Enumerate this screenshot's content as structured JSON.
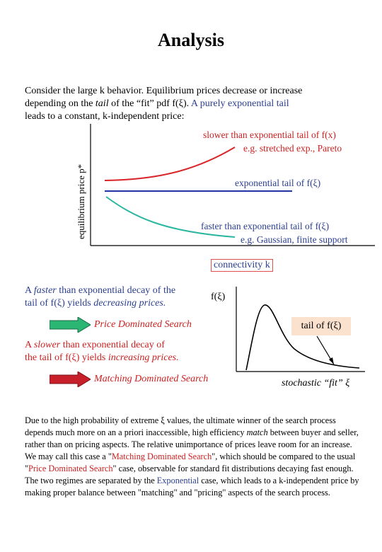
{
  "title": "Analysis",
  "intro": {
    "line1": "Consider the large k behavior. Equilibrium prices decrease or increase",
    "line2_pre": "depending on the ",
    "line2_tail": "tail",
    "line2_post": " of the “fit” pdf  f(ξ). ",
    "line2_blue": "A purely exponential tail",
    "line3": "leads to a constant, k-independent price:"
  },
  "graph": {
    "ylabel": "equilibrium price  p*",
    "slower_line1": "slower than exponential tail of  f(x)",
    "slower_line2": "e.g. stretched exp.,  Pareto",
    "exp_label": "exponential tail of  f(ξ)",
    "faster_line1": "faster than exponential tail of  f(ξ)",
    "faster_line2": "e.g. Gaussian, finite support",
    "xlabel": "connectivity k",
    "colors": {
      "slower": "#d9262a",
      "exponential": "#2433a8",
      "faster": "#2bb6a0"
    }
  },
  "faster_para": {
    "line1_pre": "A ",
    "line1_it": "faster",
    "line1_post": " than exponential decay of the",
    "line2_pre": "tail of f(ξ) yields ",
    "line2_it": "decreasing prices."
  },
  "price_search": "Price Dominated Search",
  "slower_para": {
    "line1_pre": "A ",
    "line1_it": "slower",
    "line1_post": " than exponential decay of",
    "line2_pre": "the tail of f(ξ) yields ",
    "line2_it": "increasing prices."
  },
  "matching_search": "Matching Dominated Search",
  "pdf": {
    "ylabel": "f(ξ)",
    "tail_label": "tail of  f(ξ)",
    "xlabel": "stochastic “fit”  ξ"
  },
  "arrow_colors": {
    "green": "#2bb673",
    "red": "#c8202a"
  },
  "bottom": {
    "s1": "Due to the high probability of extreme ξ values, the ultimate winner of the search process depends much more on an a priori inaccessible, high efficiency ",
    "s1_it": "match",
    "s2": " between buyer and seller, rather than on pricing aspects. The relative unimportance of prices leave room for an increase. We may call this case a \"",
    "red1": "Matching Dominated Search",
    "s3": "\", which should be compared to the usual \"",
    "red2": "Price Dominated Search",
    "s4": "\" case, observable for standard fit distributions decaying fast enough. The two regimes are separated by the ",
    "blue1": "Exponential",
    "s5": " case, which leads to a k-independent price by making proper balance between \"matching\" and \"pricing\" aspects of the search process."
  }
}
